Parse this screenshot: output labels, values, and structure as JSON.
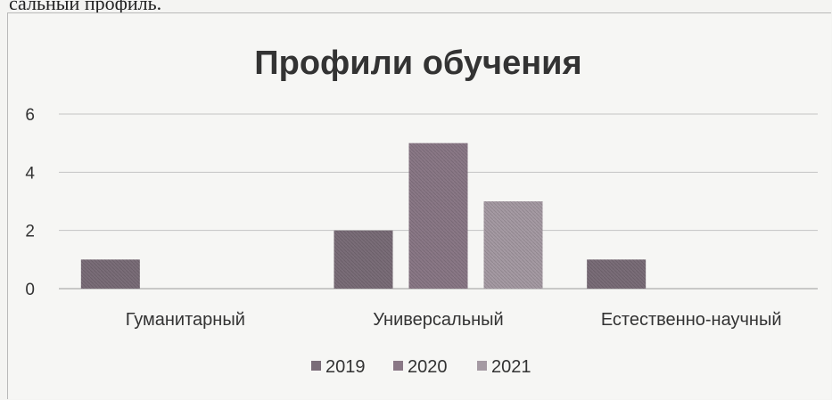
{
  "page": {
    "top_caption": "сальный профиль."
  },
  "chart_data": {
    "type": "bar",
    "title": "Профили обучения",
    "xlabel": "",
    "ylabel": "",
    "categories": [
      "Гуманитарный",
      "Универсальный",
      "Естественно-научный"
    ],
    "series": [
      {
        "name": "2019",
        "values": [
          1,
          2,
          1
        ],
        "color": "#7a6d78"
      },
      {
        "name": "2020",
        "values": [
          0,
          5,
          0
        ],
        "color": "#8a7886"
      },
      {
        "name": "2021",
        "values": [
          0,
          3,
          0
        ],
        "color": "#a59aa3"
      }
    ],
    "ylim": [
      0,
      6
    ],
    "yticks": [
      0,
      2,
      4,
      6
    ],
    "grid": true,
    "legend_position": "bottom"
  }
}
